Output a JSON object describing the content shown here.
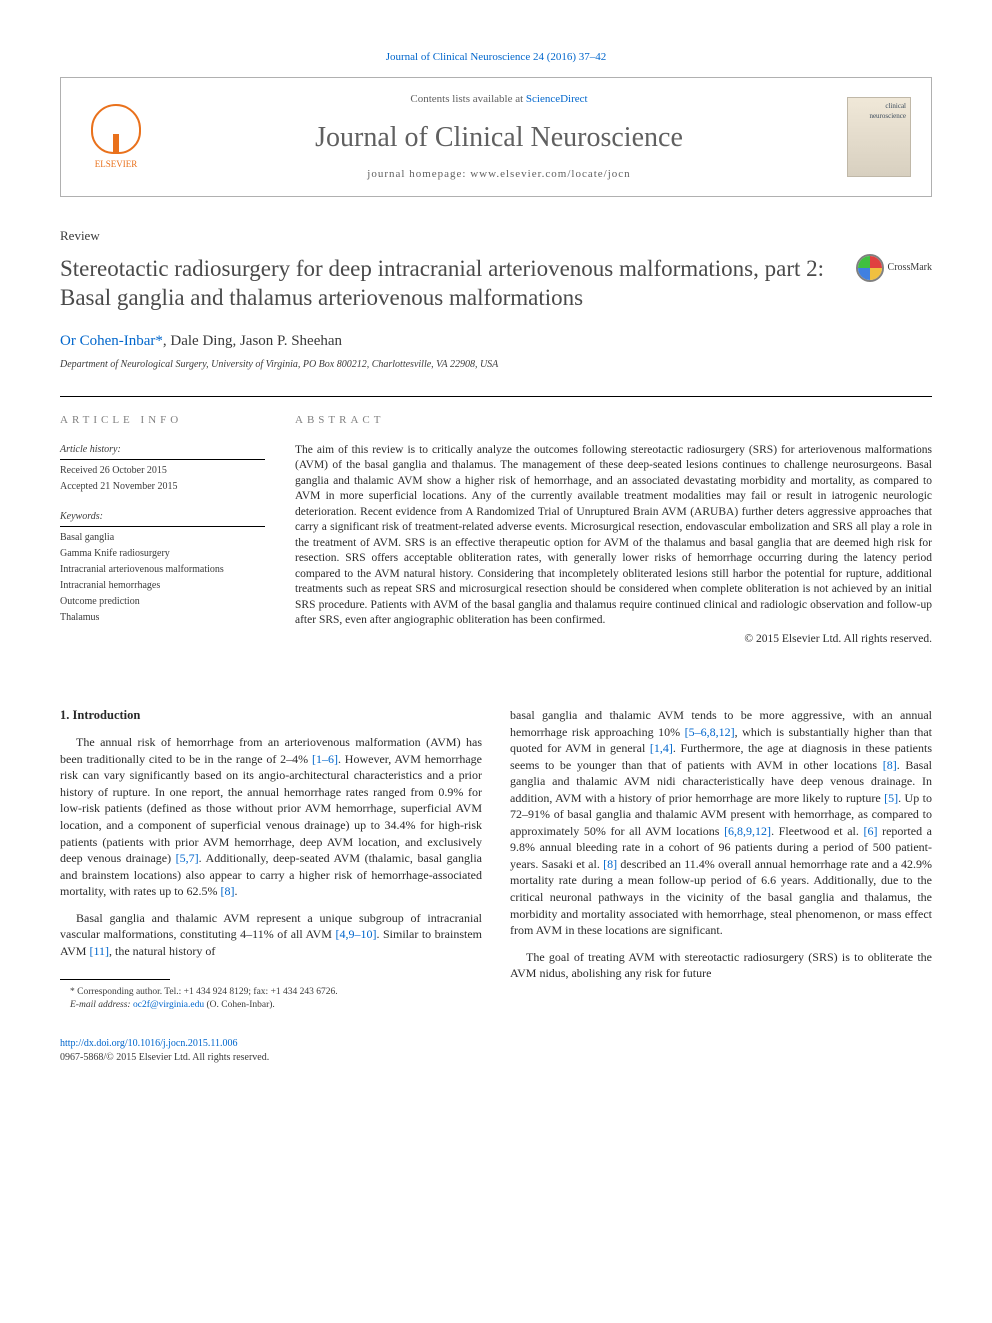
{
  "journal_ref": {
    "prefix": "",
    "link_text": "Journal of Clinical Neuroscience 24 (2016) 37–42",
    "href": "#"
  },
  "header": {
    "elsevier_label": "ELSEVIER",
    "contents_prefix": "Contents lists available at ",
    "contents_link": "ScienceDirect",
    "journal_name": "Journal of Clinical Neuroscience",
    "homepage_label": "journal homepage: www.elsevier.com/locate/jocn",
    "cover_text": "clinical neuroscience"
  },
  "article_type": "Review",
  "article_title": "Stereotactic radiosurgery for deep intracranial arteriovenous malformations, part 2: Basal ganglia and thalamus arteriovenous malformations",
  "crossmark_label": "CrossMark",
  "authors": {
    "list": "Or Cohen-Inbar",
    "star": "*",
    "rest": ", Dale Ding, Jason P. Sheehan"
  },
  "affiliation": "Department of Neurological Surgery, University of Virginia, PO Box 800212, Charlottesville, VA 22908, USA",
  "article_info": {
    "heading": "ARTICLE INFO",
    "history_heading": "Article history:",
    "received": "Received 26 October 2015",
    "accepted": "Accepted 21 November 2015",
    "keywords_heading": "Keywords:",
    "keywords": [
      "Basal ganglia",
      "Gamma Knife radiosurgery",
      "Intracranial arteriovenous malformations",
      "Intracranial hemorrhages",
      "Outcome prediction",
      "Thalamus"
    ]
  },
  "abstract": {
    "heading": "ABSTRACT",
    "text": "The aim of this review is to critically analyze the outcomes following stereotactic radiosurgery (SRS) for arteriovenous malformations (AVM) of the basal ganglia and thalamus. The management of these deep-seated lesions continues to challenge neurosurgeons. Basal ganglia and thalamic AVM show a higher risk of hemorrhage, and an associated devastating morbidity and mortality, as compared to AVM in more superficial locations. Any of the currently available treatment modalities may fail or result in iatrogenic neurologic deterioration. Recent evidence from A Randomized Trial of Unruptured Brain AVM (ARUBA) further deters aggressive approaches that carry a significant risk of treatment-related adverse events. Microsurgical resection, endovascular embolization and SRS all play a role in the treatment of AVM. SRS is an effective therapeutic option for AVM of the thalamus and basal ganglia that are deemed high risk for resection. SRS offers acceptable obliteration rates, with generally lower risks of hemorrhage occurring during the latency period compared to the AVM natural history. Considering that incompletely obliterated lesions still harbor the potential for rupture, additional treatments such as repeat SRS and microsurgical resection should be considered when complete obliteration is not achieved by an initial SRS procedure. Patients with AVM of the basal ganglia and thalamus require continued clinical and radiologic observation and follow-up after SRS, even after angiographic obliteration has been confirmed.",
    "copyright": "© 2015 Elsevier Ltd. All rights reserved."
  },
  "section1": {
    "heading": "1. Introduction",
    "para1_a": "The annual risk of hemorrhage from an arteriovenous malformation (AVM) has been traditionally cited to be in the range of 2–4% ",
    "ref1": "[1–6]",
    "para1_b": ". However, AVM hemorrhage risk can vary significantly based on its angio-architectural characteristics and a prior history of rupture. In one report, the annual hemorrhage rates ranged from 0.9% for low-risk patients (defined as those without prior AVM hemorrhage, superficial AVM location, and a component of superficial venous drainage) up to 34.4% for high-risk patients (patients with prior AVM hemorrhage, deep AVM location, and exclusively deep venous drainage) ",
    "ref2": "[5,7]",
    "para1_c": ". Additionally, deep-seated AVM (thalamic, basal ganglia and brainstem locations) also appear to carry a higher risk of hemorrhage-associated mortality, with rates up to 62.5% ",
    "ref3": "[8]",
    "para1_d": ".",
    "para2_a": "Basal ganglia and thalamic AVM represent a unique subgroup of intracranial vascular malformations, constituting 4–11% of all AVM ",
    "ref4": "[4,9–10]",
    "para2_b": ". Similar to brainstem AVM ",
    "ref5": "[11]",
    "para2_c": ", the natural history of",
    "col2_a": "basal ganglia and thalamic AVM tends to be more aggressive, with an annual hemorrhage risk approaching 10% ",
    "ref6": "[5–6,8,12]",
    "col2_b": ", which is substantially higher than that quoted for AVM in general ",
    "ref7": "[1,4]",
    "col2_c": ". Furthermore, the age at diagnosis in these patients seems to be younger than that of patients with AVM in other locations ",
    "ref8": "[8]",
    "col2_d": ". Basal ganglia and thalamic AVM nidi characteristically have deep venous drainage. In addition, AVM with a history of prior hemorrhage are more likely to rupture ",
    "ref9": "[5]",
    "col2_e": ". Up to 72–91% of basal ganglia and thalamic AVM present with hemorrhage, as compared to approximately 50% for all AVM locations ",
    "ref10": "[6,8,9,12]",
    "col2_f": ". Fleetwood et al. ",
    "ref11": "[6]",
    "col2_g": " reported a 9.8% annual bleeding rate in a cohort of 96 patients during a period of 500 patient-years. Sasaki et al. ",
    "ref12": "[8]",
    "col2_h": " described an 11.4% overall annual hemorrhage rate and a 42.9% mortality rate during a mean follow-up period of 6.6 years. Additionally, due to the critical neuronal pathways in the vicinity of the basal ganglia and thalamus, the morbidity and mortality associated with hemorrhage, steal phenomenon, or mass effect from AVM in these locations are significant.",
    "para3": "The goal of treating AVM with stereotactic radiosurgery (SRS) is to obliterate the AVM nidus, abolishing any risk for future"
  },
  "footnote": {
    "corr_label": "* Corresponding author. Tel.: +1 434 924 8129; fax: +1 434 243 6726.",
    "email_label": "E-mail address: ",
    "email_link": "oc2f@virginia.edu",
    "email_suffix": " (O. Cohen-Inbar)."
  },
  "footer": {
    "doi_link": "http://dx.doi.org/10.1016/j.jocn.2015.11.006",
    "issn_line": "0967-5868/© 2015 Elsevier Ltd. All rights reserved."
  },
  "colors": {
    "link": "#0066cc",
    "elsevier": "#e9711c",
    "heading_gray": "#606060",
    "text": "#2a2a2a",
    "border": "#b0b0b0"
  }
}
